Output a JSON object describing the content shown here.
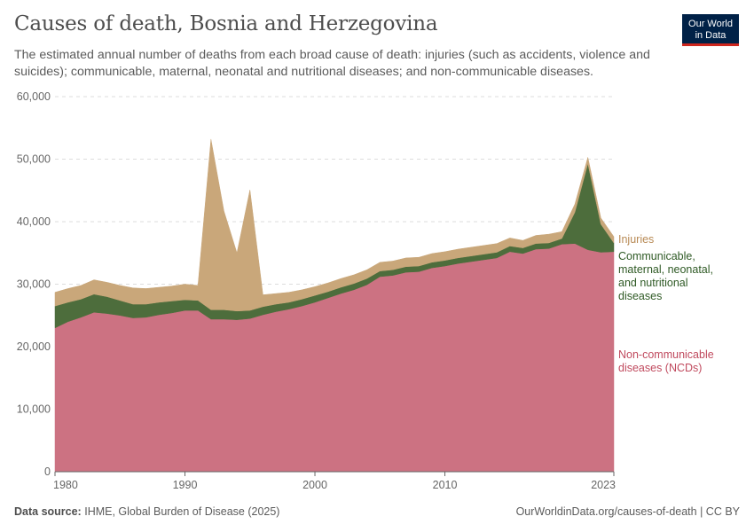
{
  "header": {
    "title": "Causes of death, Bosnia and Herzegovina",
    "subtitle": "The estimated annual number of deaths from each broad cause of death: injuries (such as accidents, violence and suicides); communicable, maternal, neonatal and nutritional diseases; and non-communicable diseases.",
    "logo_line1": "Our World",
    "logo_line2": "in Data"
  },
  "footer": {
    "source_label": "Data source:",
    "source_text": "IHME, Global Burden of Disease (2025)",
    "url": "OurWorldinData.org/causes-of-death | CC BY"
  },
  "colors": {
    "ncd": "#cc7282",
    "communicable": "#4d6d3c",
    "injuries": "#c9a77a",
    "ncd_label": "#c04a5e",
    "communicable_label": "#2f5a25",
    "injuries_label": "#b88a55",
    "grid": "#dddddd",
    "axis": "#666666"
  },
  "chart_data": {
    "type": "area",
    "stacked": true,
    "title": "Causes of death, Bosnia and Herzegovina",
    "xlabel": "",
    "ylabel": "",
    "xlim": [
      1980,
      2023
    ],
    "ylim": [
      0,
      60000
    ],
    "x_ticks": [
      1980,
      1990,
      2000,
      2010,
      2023
    ],
    "x_tick_labels": [
      "1980",
      "1990",
      "2000",
      "2010",
      "2023"
    ],
    "y_ticks": [
      0,
      10000,
      20000,
      30000,
      40000,
      50000,
      60000
    ],
    "y_tick_labels": [
      "0",
      "10,000",
      "20,000",
      "30,000",
      "40,000",
      "50,000",
      "60,000"
    ],
    "grid": true,
    "legend_position": "right",
    "x": [
      1980,
      1981,
      1982,
      1983,
      1984,
      1985,
      1986,
      1987,
      1988,
      1989,
      1990,
      1991,
      1992,
      1993,
      1994,
      1995,
      1996,
      1997,
      1998,
      1999,
      2000,
      2001,
      2002,
      2003,
      2004,
      2005,
      2006,
      2007,
      2008,
      2009,
      2010,
      2011,
      2012,
      2013,
      2014,
      2015,
      2016,
      2017,
      2018,
      2019,
      2020,
      2021,
      2022,
      2023
    ],
    "series": [
      {
        "name": "Non-communicable diseases (NCDs)",
        "label_lines": [
          "Non-communicable",
          "diseases (NCDs)"
        ],
        "color": "#cc7282",
        "values": [
          23000,
          24000,
          24700,
          25500,
          25300,
          25000,
          24600,
          24700,
          25100,
          25400,
          25800,
          25800,
          24400,
          24400,
          24300,
          24500,
          25100,
          25600,
          26000,
          26500,
          27100,
          27800,
          28500,
          29100,
          29900,
          31200,
          31400,
          31900,
          32000,
          32600,
          32900,
          33300,
          33600,
          33900,
          34200,
          35200,
          34900,
          35600,
          35700,
          36400,
          36500,
          35500,
          35100,
          35200
        ]
      },
      {
        "name": "Communicable, maternal, neonatal, and nutritional diseases",
        "label_lines": [
          "Communicable,",
          "maternal, neonatal,",
          "and nutritional",
          "diseases"
        ],
        "color": "#4d6d3c",
        "values": [
          3500,
          3100,
          2900,
          2900,
          2700,
          2400,
          2200,
          2100,
          2000,
          1900,
          1700,
          1600,
          1500,
          1500,
          1400,
          1300,
          1300,
          1200,
          1100,
          1100,
          1100,
          1000,
          1000,
          1000,
          1000,
          900,
          900,
          900,
          900,
          900,
          900,
          900,
          900,
          900,
          900,
          900,
          900,
          900,
          900,
          900,
          5000,
          13800,
          4500,
          1400
        ]
      },
      {
        "name": "Injuries",
        "label_lines": [
          "Injuries"
        ],
        "color": "#c9a77a",
        "values": [
          2200,
          2200,
          2200,
          2300,
          2300,
          2400,
          2600,
          2500,
          2400,
          2400,
          2500,
          2400,
          27300,
          15800,
          9300,
          19300,
          1900,
          1700,
          1600,
          1500,
          1400,
          1400,
          1400,
          1400,
          1400,
          1400,
          1400,
          1400,
          1400,
          1400,
          1400,
          1400,
          1400,
          1400,
          1400,
          1300,
          1200,
          1300,
          1400,
          1100,
          1300,
          1000,
          1000,
          1000
        ]
      }
    ]
  }
}
